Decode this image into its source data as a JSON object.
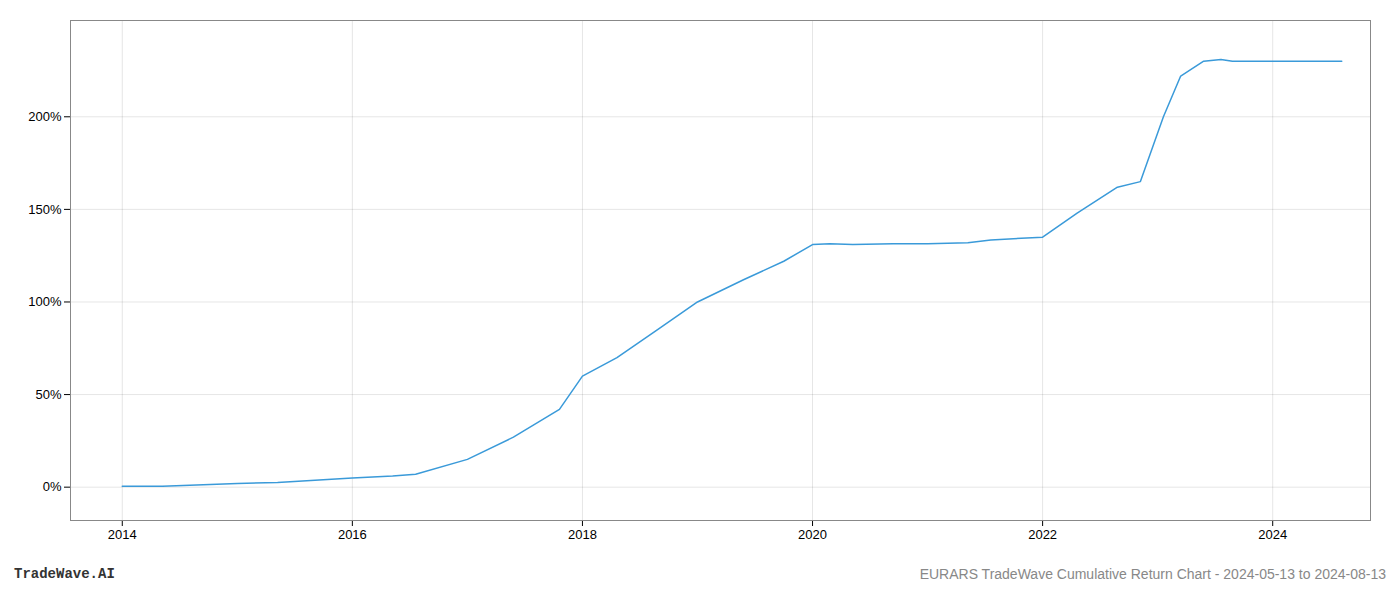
{
  "chart_data": {
    "type": "line",
    "x": [
      2014.0,
      2014.35,
      2015.0,
      2015.35,
      2016.0,
      2016.35,
      2016.55,
      2017.0,
      2017.4,
      2017.8,
      2018.0,
      2018.3,
      2018.65,
      2019.0,
      2019.4,
      2019.75,
      2020.0,
      2020.15,
      2020.35,
      2020.7,
      2021.0,
      2021.35,
      2021.55,
      2022.0,
      2022.3,
      2022.65,
      2022.85,
      2023.05,
      2023.2,
      2023.4,
      2023.55,
      2023.65,
      2024.0,
      2024.35,
      2024.6
    ],
    "values": [
      0.5,
      0.5,
      2.0,
      2.5,
      5.0,
      6.0,
      7.0,
      15.0,
      27.0,
      42.0,
      60.0,
      70.0,
      85.0,
      100.0,
      112.0,
      122.0,
      131.0,
      131.5,
      131.0,
      131.5,
      131.5,
      132.0,
      133.5,
      135.0,
      148.0,
      162.0,
      165.0,
      200.0,
      222.0,
      230.0,
      231.0,
      230.0,
      230.0,
      230.0,
      230.0
    ],
    "color": "#3a9ad9",
    "xlim": [
      2013.55,
      2024.85
    ],
    "ylim": [
      -18,
      252
    ],
    "xticks": [
      2014,
      2016,
      2018,
      2020,
      2022,
      2024
    ],
    "yticks": [
      {
        "value": 0,
        "label": "0%"
      },
      {
        "value": 50,
        "label": "50%"
      },
      {
        "value": 100,
        "label": "100%"
      },
      {
        "value": 150,
        "label": "150%"
      },
      {
        "value": 200,
        "label": "200%"
      }
    ],
    "grid": true,
    "annotations": [
      "TradeWave.AI",
      "EURARS TradeWave Cumulative Return Chart - 2024-05-13 to 2024-08-13"
    ]
  }
}
